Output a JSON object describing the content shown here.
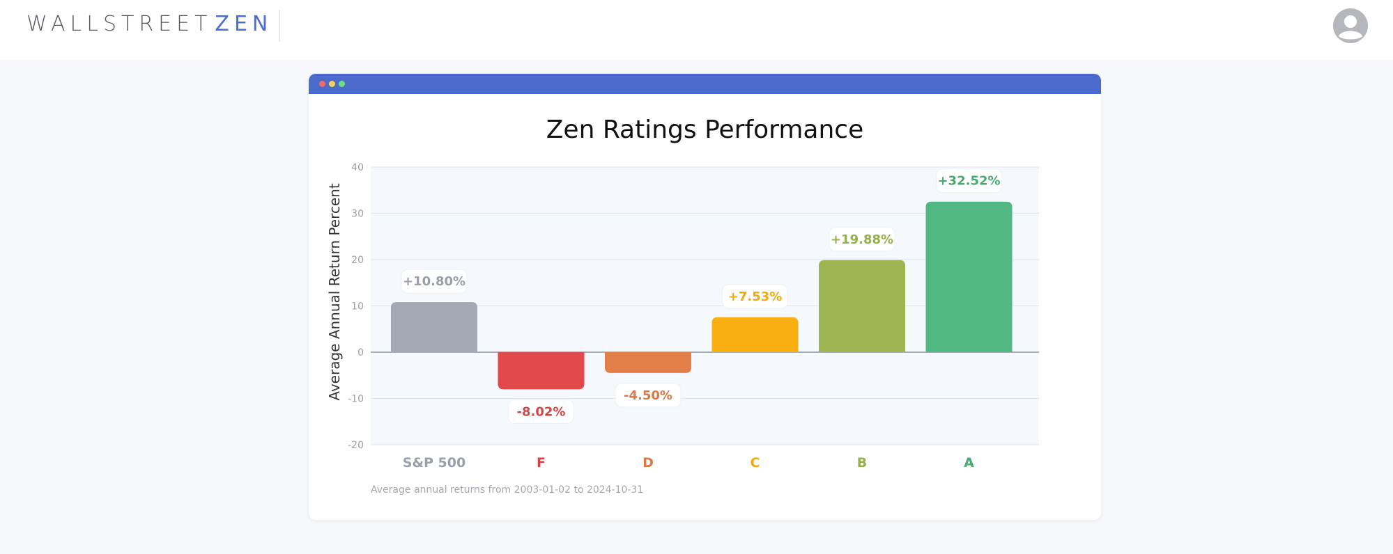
{
  "header": {
    "logo_part1": "WALLSTREET",
    "logo_part2": "ZEN",
    "avatar_icon": "user-circle-icon"
  },
  "card": {
    "window_dots": [
      "red",
      "yellow",
      "green"
    ]
  },
  "colors": {
    "accent": "#4a6bcb",
    "logo_accent": "#4a6fd1"
  },
  "chart_data": {
    "type": "bar",
    "title": "Zen Ratings Performance",
    "ylabel": "Average Annual Return Percent",
    "xlabel": "",
    "ylim": [
      -20,
      40
    ],
    "yticks": [
      40,
      30,
      20,
      10,
      0,
      -10,
      -20
    ],
    "categories": [
      "S&P 500",
      "F",
      "D",
      "C",
      "B",
      "A"
    ],
    "values": [
      10.8,
      -8.02,
      -4.5,
      7.53,
      19.88,
      32.52
    ],
    "value_labels": [
      "+10.80%",
      "-8.02%",
      "-4.50%",
      "+7.53%",
      "+19.88%",
      "+32.52%"
    ],
    "colors": [
      "#a3a8b3",
      "#e04a4a",
      "#e07f48",
      "#f9ae12",
      "#9db553",
      "#52b883"
    ],
    "label_colors": [
      "#9a9ea8",
      "#d64545",
      "#d97a45",
      "#f2a90f",
      "#93b04a",
      "#4aa873"
    ],
    "footnote": "Average annual returns from 2003-01-02 to 2024-10-31"
  }
}
